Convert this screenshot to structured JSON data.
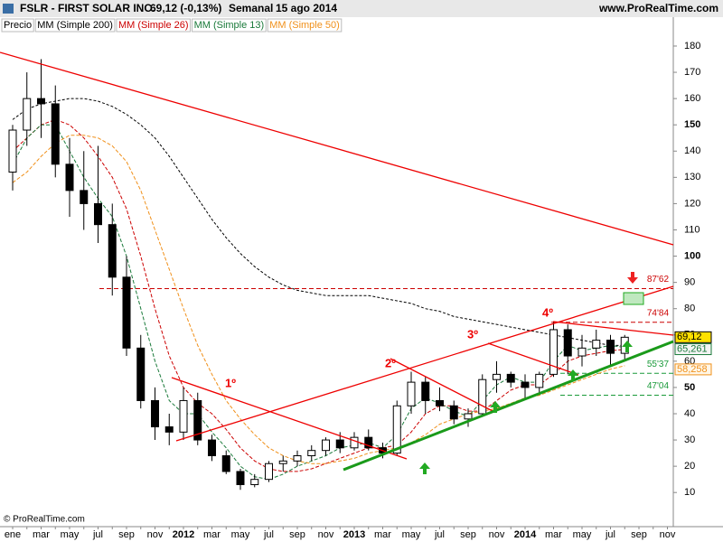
{
  "chart_data": {
    "type": "candlestick",
    "title": "FSLR - FIRST SOLAR INC.",
    "quote": "69,12 (-0,13%)",
    "period": "Semanal",
    "date": "15 ago 2014",
    "source": "www.ProRealTime.com",
    "copyright": "© ProRealTime.com",
    "categories": [
      "ene",
      null,
      "mar",
      null,
      "may",
      null,
      "jul",
      null,
      "sep",
      null,
      "nov",
      null,
      "2012",
      null,
      "mar",
      null,
      "may",
      null,
      "jul",
      null,
      "sep",
      null,
      "nov",
      null,
      "2013",
      null,
      "mar",
      null,
      "may",
      null,
      "jul",
      null,
      "sep",
      null,
      "nov",
      null,
      "2014",
      null,
      "mar",
      null,
      "may",
      null,
      "jul",
      null,
      "sep",
      null,
      "nov"
    ],
    "ohlc": {
      "name": "Precio",
      "open": [
        132,
        148,
        160,
        158,
        135,
        125,
        120,
        112,
        92,
        65,
        45,
        35,
        33,
        45,
        30,
        24,
        18,
        13,
        15,
        21,
        22,
        24,
        26,
        30,
        27,
        31,
        27,
        25,
        43,
        52,
        45,
        43,
        38,
        40,
        53,
        55,
        52,
        50,
        55,
        72,
        62,
        65,
        68,
        63,
        null,
        null,
        null
      ],
      "high": [
        150,
        170,
        175,
        165,
        145,
        140,
        142,
        120,
        100,
        70,
        50,
        40,
        50,
        48,
        32,
        26,
        19,
        17,
        22,
        24,
        26,
        28,
        31,
        33,
        33,
        34,
        29,
        45,
        56,
        54,
        50,
        45,
        42,
        55,
        60,
        56,
        55,
        56,
        75,
        74,
        70,
        72,
        70,
        70,
        null,
        null,
        null
      ],
      "low": [
        125,
        142,
        145,
        130,
        115,
        110,
        105,
        85,
        62,
        42,
        30,
        28,
        30,
        28,
        22,
        17,
        11,
        12,
        14,
        18,
        20,
        22,
        24,
        25,
        26,
        26,
        23,
        24,
        40,
        40,
        41,
        36,
        35,
        39,
        48,
        50,
        46,
        48,
        54,
        55,
        58,
        62,
        58,
        60,
        null,
        null,
        null
      ],
      "close": [
        148,
        160,
        158,
        135,
        125,
        120,
        112,
        92,
        65,
        45,
        35,
        33,
        45,
        30,
        24,
        18,
        13,
        15,
        21,
        22,
        24,
        26,
        30,
        27,
        31,
        27,
        25,
        43,
        52,
        45,
        43,
        38,
        40,
        53,
        55,
        52,
        50,
        55,
        72,
        62,
        65,
        68,
        63,
        69.12,
        null,
        null,
        null
      ]
    },
    "series": [
      {
        "name": "MM (Simple 200)",
        "color": "#000000",
        "values": [
          152,
          156,
          158,
          159,
          160,
          160,
          159,
          157,
          154,
          150,
          145,
          138,
          130,
          122,
          114,
          107,
          101,
          96,
          92,
          89,
          87,
          86,
          85,
          85,
          85,
          85,
          84,
          83,
          82,
          80,
          79,
          77,
          76,
          75,
          74,
          73,
          72,
          71,
          70,
          69,
          68,
          67,
          66,
          66,
          null,
          null,
          null
        ]
      },
      {
        "name": "MM (Simple 26)",
        "color": "#cc0000",
        "values": [
          140,
          145,
          150,
          152,
          150,
          145,
          138,
          130,
          118,
          100,
          80,
          62,
          50,
          44,
          40,
          34,
          27,
          22,
          19,
          18,
          18,
          19,
          21,
          23,
          25,
          27,
          27,
          28,
          33,
          40,
          43,
          43,
          41,
          41,
          45,
          49,
          51,
          51,
          55,
          60,
          62,
          63,
          64,
          64.5,
          null,
          null,
          null
        ]
      },
      {
        "name": "MM (Simple 13)",
        "color": "#1a7a3a",
        "values": [
          135,
          145,
          150,
          150,
          140,
          130,
          122,
          115,
          100,
          80,
          60,
          45,
          40,
          40,
          33,
          27,
          20,
          16,
          15,
          17,
          20,
          22,
          24,
          27,
          28,
          29,
          27,
          32,
          42,
          46,
          44,
          41,
          39,
          45,
          51,
          54,
          52,
          52,
          60,
          66,
          64,
          65,
          66,
          65.261,
          null,
          null,
          null
        ]
      },
      {
        "name": "MM (Simple 50)",
        "color": "#f0901a",
        "values": [
          128,
          132,
          138,
          143,
          146,
          146,
          145,
          142,
          136,
          125,
          110,
          95,
          80,
          66,
          55,
          45,
          38,
          32,
          27,
          24,
          22,
          21,
          21,
          22,
          23,
          25,
          26,
          27,
          29,
          32,
          36,
          38,
          40,
          41,
          42,
          44,
          46,
          47,
          49,
          51,
          53,
          55,
          57,
          58.258,
          null,
          null,
          null
        ]
      }
    ],
    "last_values": [
      {
        "value": 69.12,
        "label": "69,12"
      },
      {
        "value": 65.261,
        "label": "65,261"
      },
      {
        "value": 58.258,
        "label": "58,258"
      }
    ],
    "levels": [
      {
        "value": 87.62,
        "label": "87'62",
        "color": "#cc0000"
      },
      {
        "value": 74.84,
        "label": "74'84",
        "color": "#cc0000"
      },
      {
        "value": 55.37,
        "label": "55'37",
        "color": "#1a9a3a"
      },
      {
        "value": 47.04,
        "label": "47'04",
        "color": "#1a9a3a"
      }
    ],
    "annotations": [
      "1º",
      "2º",
      "3º",
      "4º"
    ],
    "ylim": [
      -3,
      191
    ],
    "yticks": [
      10,
      20,
      30,
      40,
      50,
      60,
      70,
      80,
      90,
      100,
      110,
      120,
      130,
      140,
      150,
      160,
      170,
      180
    ]
  }
}
